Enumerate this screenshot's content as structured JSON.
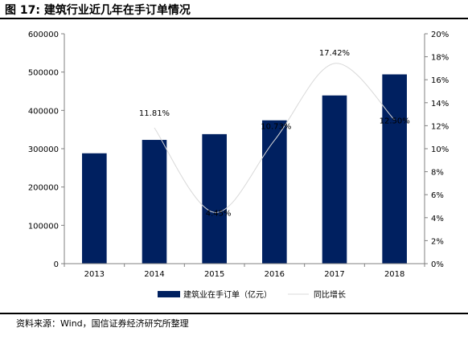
{
  "figure": {
    "title": "图 17:  建筑行业近几年在手订单情况",
    "source": "资料来源：Wind，国信证券经济研究所整理"
  },
  "chart_data": {
    "type": "bar",
    "categories": [
      "2013",
      "2014",
      "2015",
      "2016",
      "2017",
      "2018"
    ],
    "series": [
      {
        "name": "建筑业在手订单（亿元）",
        "type": "bar",
        "axis": "left",
        "color": "#002060",
        "values": [
          288000,
          323000,
          338000,
          374000,
          439000,
          494000
        ]
      },
      {
        "name": "同比增长",
        "type": "line",
        "axis": "right",
        "color": "#d9d9d9",
        "values": [
          null,
          11.81,
          4.45,
          10.73,
          17.42,
          12.5
        ],
        "labels": [
          "",
          "11.81%",
          "4.45%",
          "10.73%",
          "17.42%",
          "12.50%"
        ]
      }
    ],
    "y_left": {
      "ylim": [
        0,
        600000
      ],
      "ticks": [
        0,
        100000,
        200000,
        300000,
        400000,
        500000,
        600000
      ],
      "tick_labels": [
        "0",
        "100000",
        "200000",
        "300000",
        "400000",
        "500000",
        "600000"
      ]
    },
    "y_right": {
      "ylim": [
        0,
        20
      ],
      "ticks": [
        0,
        2,
        4,
        6,
        8,
        10,
        12,
        14,
        16,
        18,
        20
      ],
      "tick_labels": [
        "0%",
        "2%",
        "4%",
        "6%",
        "8%",
        "10%",
        "12%",
        "14%",
        "16%",
        "18%",
        "20%"
      ]
    },
    "grid": false,
    "legend": "bottom"
  }
}
